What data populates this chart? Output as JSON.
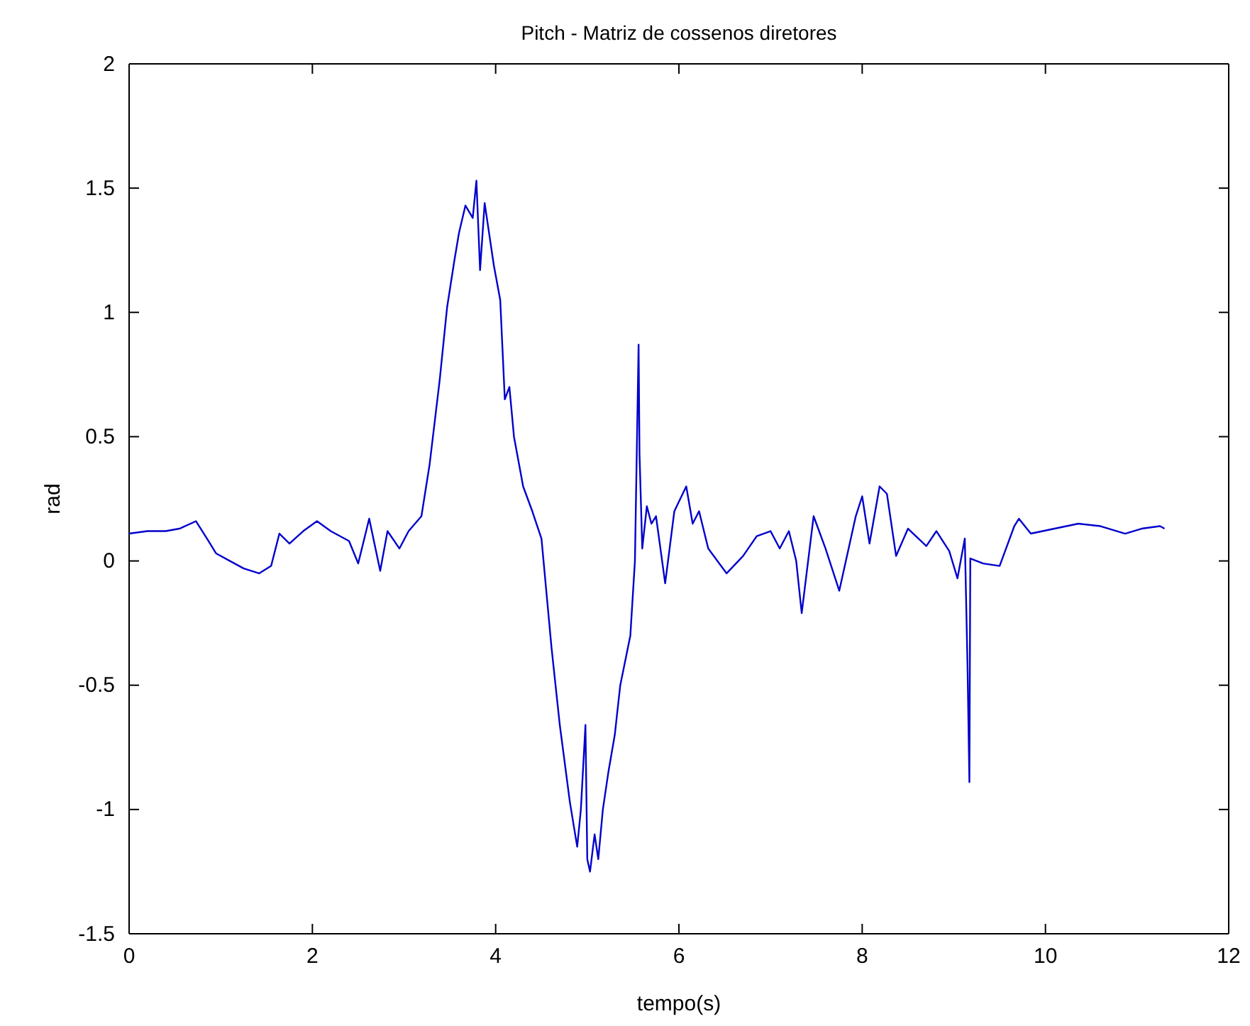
{
  "chart_data": {
    "type": "line",
    "title": "Pitch - Matriz de cossenos diretores",
    "xlabel": "tempo(s)",
    "ylabel": "rad",
    "xlim": [
      0,
      12
    ],
    "xticks": [
      0,
      2,
      4,
      6,
      8,
      10,
      12
    ],
    "ylim": [
      -1.5,
      2
    ],
    "yticks": [
      -1.5,
      -1,
      -0.5,
      0,
      0.5,
      1,
      1.5,
      2
    ],
    "grid": false,
    "series": [
      {
        "color": "#0000cc",
        "x": [
          0,
          0.2,
          0.4,
          0.55,
          0.73,
          0.85,
          0.95,
          1.1,
          1.25,
          1.42,
          1.55,
          1.64,
          1.75,
          1.9,
          2.05,
          2.2,
          2.3,
          2.4,
          2.5,
          2.62,
          2.74,
          2.82,
          2.95,
          3.05,
          3.19,
          3.28,
          3.39,
          3.47,
          3.55,
          3.6,
          3.67,
          3.75,
          3.79,
          3.83,
          3.88,
          3.98,
          4.05,
          4.1,
          4.15,
          4.2,
          4.3,
          4.4,
          4.5,
          4.61,
          4.7,
          4.81,
          4.89,
          4.93,
          4.98,
          5.0,
          5.03,
          5.08,
          5.12,
          5.17,
          5.23,
          5.3,
          5.36,
          5.47,
          5.52,
          5.56,
          5.57,
          5.6,
          5.65,
          5.7,
          5.75,
          5.85,
          5.95,
          6.08,
          6.15,
          6.22,
          6.32,
          6.52,
          6.7,
          6.85,
          7.0,
          7.1,
          7.2,
          7.28,
          7.34,
          7.47,
          7.6,
          7.75,
          7.93,
          8.0,
          8.08,
          8.19,
          8.27,
          8.37,
          8.5,
          8.7,
          8.81,
          8.95,
          9.04,
          9.12,
          9.15,
          9.17,
          9.18,
          9.32,
          9.5,
          9.66,
          9.71,
          9.84,
          10.1,
          10.36,
          10.6,
          10.87,
          11.05,
          11.25,
          11.3
        ],
        "values": [
          0.11,
          0.12,
          0.12,
          0.13,
          0.16,
          0.09,
          0.03,
          0.0,
          -0.03,
          -0.05,
          -0.02,
          0.11,
          0.07,
          0.12,
          0.16,
          0.12,
          0.1,
          0.08,
          -0.01,
          0.17,
          -0.04,
          0.12,
          0.05,
          0.12,
          0.18,
          0.39,
          0.73,
          1.02,
          1.21,
          1.32,
          1.43,
          1.38,
          1.53,
          1.17,
          1.44,
          1.19,
          1.05,
          0.65,
          0.7,
          0.5,
          0.3,
          0.2,
          0.09,
          -0.35,
          -0.66,
          -0.97,
          -1.15,
          -1.0,
          -0.66,
          -1.2,
          -1.25,
          -1.1,
          -1.2,
          -1.0,
          -0.85,
          -0.7,
          -0.5,
          -0.3,
          0.0,
          0.87,
          0.43,
          0.05,
          0.22,
          0.15,
          0.18,
          -0.09,
          0.2,
          0.3,
          0.15,
          0.2,
          0.05,
          -0.05,
          0.02,
          0.1,
          0.12,
          0.05,
          0.12,
          0.0,
          -0.21,
          0.18,
          0.05,
          -0.12,
          0.18,
          0.26,
          0.07,
          0.3,
          0.27,
          0.02,
          0.13,
          0.06,
          0.12,
          0.04,
          -0.07,
          0.09,
          -0.43,
          -0.89,
          0.01,
          -0.01,
          -0.02,
          0.14,
          0.17,
          0.11,
          0.13,
          0.15,
          0.14,
          0.11,
          0.13,
          0.14,
          0.13
        ]
      }
    ]
  }
}
